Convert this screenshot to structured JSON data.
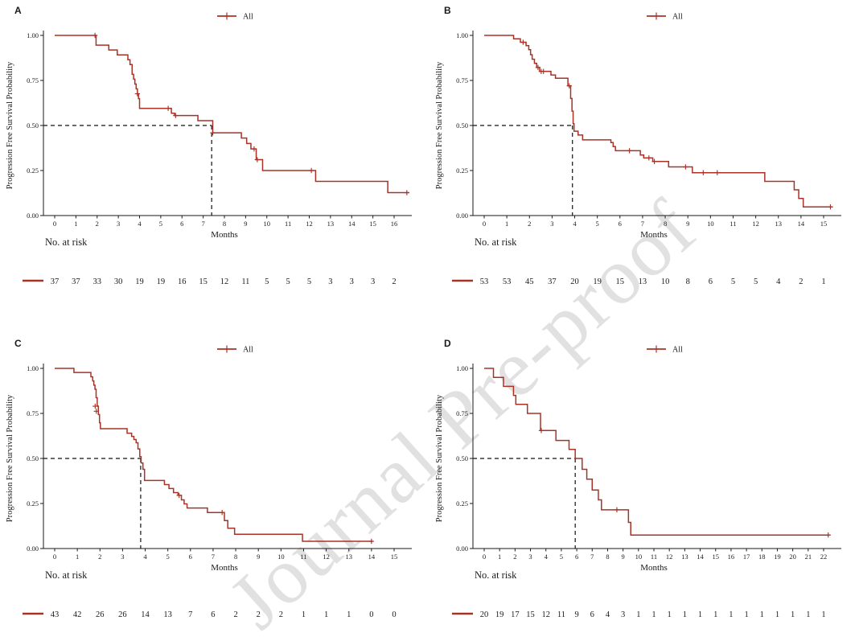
{
  "watermark": "Journal Pre-proof",
  "colors": {
    "curve": "#a93226",
    "axis": "#1a1a1a",
    "dashed": "#111111",
    "text": "#1a1a1a",
    "watermark": "#c8c8c8"
  },
  "labels": {
    "y_axis": "Progression Free Survival Probability",
    "x_axis": "Months",
    "at_risk": "No. at risk",
    "legend": "All",
    "y_ticks": [
      "1.00",
      "0.75",
      "0.50",
      "0.25",
      "0.00"
    ]
  },
  "chart_data": [
    {
      "panel": "A",
      "type": "line",
      "curve_style": "kaplan-meier-step",
      "ylabel": "Progression Free Survival Probability",
      "xlabel": "Months",
      "legend": [
        "All"
      ],
      "ylim": [
        0,
        1
      ],
      "x_ticks": [
        0,
        1,
        2,
        3,
        4,
        5,
        6,
        7,
        8,
        9,
        10,
        11,
        12,
        13,
        14,
        15,
        16
      ],
      "median_months": 7.4,
      "end_x": 16.7,
      "steps": [
        [
          0,
          1.0
        ],
        [
          1.95,
          0.946
        ],
        [
          2.55,
          0.919
        ],
        [
          2.95,
          0.892
        ],
        [
          3.45,
          0.865
        ],
        [
          3.55,
          0.838
        ],
        [
          3.65,
          0.784
        ],
        [
          3.72,
          0.757
        ],
        [
          3.78,
          0.73
        ],
        [
          3.84,
          0.703
        ],
        [
          3.9,
          0.676
        ],
        [
          3.95,
          0.649
        ],
        [
          4.0,
          0.595
        ],
        [
          5.5,
          0.568
        ],
        [
          5.65,
          0.555
        ],
        [
          6.75,
          0.527
        ],
        [
          7.45,
          0.459
        ],
        [
          8.8,
          0.43
        ],
        [
          9.05,
          0.4
        ],
        [
          9.25,
          0.37
        ],
        [
          9.5,
          0.31
        ],
        [
          9.8,
          0.25
        ],
        [
          12.3,
          0.19
        ],
        [
          15.7,
          0.127
        ]
      ],
      "censors": [
        [
          1.9,
          1.0
        ],
        [
          3.9,
          0.676
        ],
        [
          5.35,
          0.595
        ],
        [
          5.7,
          0.555
        ],
        [
          7.45,
          0.459
        ],
        [
          9.4,
          0.37
        ],
        [
          9.55,
          0.31
        ],
        [
          12.1,
          0.25
        ],
        [
          16.6,
          0.127
        ]
      ],
      "at_risk": [
        37,
        37,
        33,
        30,
        19,
        19,
        16,
        15,
        12,
        11,
        5,
        5,
        5,
        3,
        3,
        3,
        2
      ]
    },
    {
      "panel": "B",
      "type": "line",
      "curve_style": "kaplan-meier-step",
      "ylabel": "Progression Free Survival Probability",
      "xlabel": "Months",
      "legend": [
        "All"
      ],
      "ylim": [
        0,
        1
      ],
      "x_ticks": [
        0,
        1,
        2,
        3,
        4,
        5,
        6,
        7,
        8,
        9,
        10,
        11,
        12,
        13,
        14,
        15
      ],
      "median_months": 3.9,
      "end_x": 15.4,
      "steps": [
        [
          0,
          1.0
        ],
        [
          1.3,
          0.981
        ],
        [
          1.6,
          0.962
        ],
        [
          1.85,
          0.943
        ],
        [
          1.97,
          0.921
        ],
        [
          2.05,
          0.893
        ],
        [
          2.12,
          0.868
        ],
        [
          2.22,
          0.845
        ],
        [
          2.32,
          0.822
        ],
        [
          2.45,
          0.8
        ],
        [
          2.95,
          0.78
        ],
        [
          3.15,
          0.762
        ],
        [
          3.7,
          0.72
        ],
        [
          3.82,
          0.65
        ],
        [
          3.88,
          0.58
        ],
        [
          3.93,
          0.51
        ],
        [
          3.97,
          0.468
        ],
        [
          4.15,
          0.447
        ],
        [
          4.35,
          0.42
        ],
        [
          5.6,
          0.405
        ],
        [
          5.7,
          0.383
        ],
        [
          5.8,
          0.36
        ],
        [
          6.9,
          0.336
        ],
        [
          7.05,
          0.32
        ],
        [
          7.45,
          0.3
        ],
        [
          8.15,
          0.27
        ],
        [
          9.2,
          0.238
        ],
        [
          12.4,
          0.19
        ],
        [
          13.7,
          0.143
        ],
        [
          13.9,
          0.095
        ],
        [
          14.1,
          0.048
        ]
      ],
      "censors": [
        [
          1.72,
          0.962
        ],
        [
          2.38,
          0.822
        ],
        [
          2.52,
          0.8
        ],
        [
          2.62,
          0.8
        ],
        [
          3.76,
          0.72
        ],
        [
          6.42,
          0.36
        ],
        [
          7.28,
          0.32
        ],
        [
          7.52,
          0.3
        ],
        [
          8.9,
          0.27
        ],
        [
          9.68,
          0.238
        ],
        [
          10.3,
          0.238
        ],
        [
          15.3,
          0.048
        ]
      ],
      "at_risk": [
        53,
        53,
        45,
        37,
        20,
        19,
        15,
        13,
        10,
        8,
        6,
        5,
        5,
        4,
        2,
        1
      ]
    },
    {
      "panel": "C",
      "type": "line",
      "curve_style": "kaplan-meier-step",
      "ylabel": "Progression Free Survival Probability",
      "xlabel": "Months",
      "legend": [
        "All"
      ],
      "ylim": [
        0,
        1
      ],
      "x_ticks": [
        0,
        1,
        2,
        3,
        4,
        5,
        6,
        7,
        8,
        9,
        10,
        11,
        12,
        13,
        14,
        15
      ],
      "median_months": 3.8,
      "end_x": 14.05,
      "steps": [
        [
          0,
          1.0
        ],
        [
          0.85,
          0.977
        ],
        [
          1.6,
          0.953
        ],
        [
          1.68,
          0.93
        ],
        [
          1.73,
          0.907
        ],
        [
          1.78,
          0.884
        ],
        [
          1.83,
          0.837
        ],
        [
          1.88,
          0.79
        ],
        [
          1.93,
          0.744
        ],
        [
          1.98,
          0.698
        ],
        [
          2.02,
          0.665
        ],
        [
          3.2,
          0.64
        ],
        [
          3.4,
          0.622
        ],
        [
          3.5,
          0.605
        ],
        [
          3.6,
          0.587
        ],
        [
          3.68,
          0.553
        ],
        [
          3.76,
          0.51
        ],
        [
          3.82,
          0.475
        ],
        [
          3.9,
          0.44
        ],
        [
          3.97,
          0.378
        ],
        [
          4.85,
          0.355
        ],
        [
          5.05,
          0.333
        ],
        [
          5.25,
          0.31
        ],
        [
          5.45,
          0.295
        ],
        [
          5.6,
          0.27
        ],
        [
          5.72,
          0.248
        ],
        [
          5.85,
          0.225
        ],
        [
          6.75,
          0.2
        ],
        [
          7.5,
          0.155
        ],
        [
          7.65,
          0.113
        ],
        [
          7.95,
          0.079
        ],
        [
          10.95,
          0.04
        ]
      ],
      "censors": [
        [
          1.79,
          0.79
        ],
        [
          1.84,
          0.762
        ],
        [
          5.5,
          0.295
        ],
        [
          7.4,
          0.2
        ],
        [
          14.0,
          0.04
        ]
      ],
      "at_risk": [
        43,
        42,
        26,
        26,
        14,
        13,
        7,
        6,
        2,
        2,
        2,
        1,
        1,
        1,
        0,
        0
      ]
    },
    {
      "panel": "D",
      "type": "line",
      "curve_style": "kaplan-meier-step",
      "ylabel": "Progression Free Survival Probability",
      "xlabel": "Months",
      "legend": [
        "All"
      ],
      "ylim": [
        0,
        1
      ],
      "x_ticks": [
        0,
        1,
        2,
        3,
        4,
        5,
        6,
        7,
        8,
        9,
        10,
        11,
        12,
        13,
        14,
        15,
        16,
        17,
        18,
        19,
        20,
        21,
        22
      ],
      "median_months": 5.9,
      "end_x": 22.4,
      "steps": [
        [
          0,
          1.0
        ],
        [
          0.6,
          0.95
        ],
        [
          1.25,
          0.9
        ],
        [
          1.9,
          0.85
        ],
        [
          2.05,
          0.8
        ],
        [
          2.8,
          0.75
        ],
        [
          3.65,
          0.655
        ],
        [
          4.65,
          0.6
        ],
        [
          5.5,
          0.55
        ],
        [
          5.9,
          0.5
        ],
        [
          6.35,
          0.44
        ],
        [
          6.65,
          0.385
        ],
        [
          7.0,
          0.325
        ],
        [
          7.4,
          0.27
        ],
        [
          7.6,
          0.215
        ],
        [
          9.35,
          0.145
        ],
        [
          9.5,
          0.075
        ]
      ],
      "censors": [
        [
          3.7,
          0.655
        ],
        [
          8.6,
          0.215
        ],
        [
          22.3,
          0.075
        ]
      ],
      "at_risk": [
        20,
        19,
        17,
        15,
        12,
        11,
        9,
        6,
        4,
        3,
        1,
        1,
        1,
        1,
        1,
        1,
        1,
        1,
        1,
        1,
        1,
        1,
        1
      ]
    }
  ]
}
